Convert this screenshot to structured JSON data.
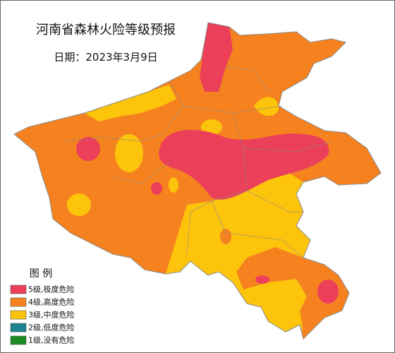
{
  "title": "河南省森林火险等级预报",
  "date": "日期：2023年3月9日",
  "legend": {
    "title": "图  例",
    "items": [
      {
        "label": "5级,极度危险",
        "color": "#ec3f5a"
      },
      {
        "label": "4级,高度危险",
        "color": "#f5821f"
      },
      {
        "label": "3级,中度危险",
        "color": "#fdc40c"
      },
      {
        "label": "2级,低度危险",
        "color": "#1f8391"
      },
      {
        "label": "1级,没有危险",
        "color": "#1c8c22"
      }
    ]
  }
}
